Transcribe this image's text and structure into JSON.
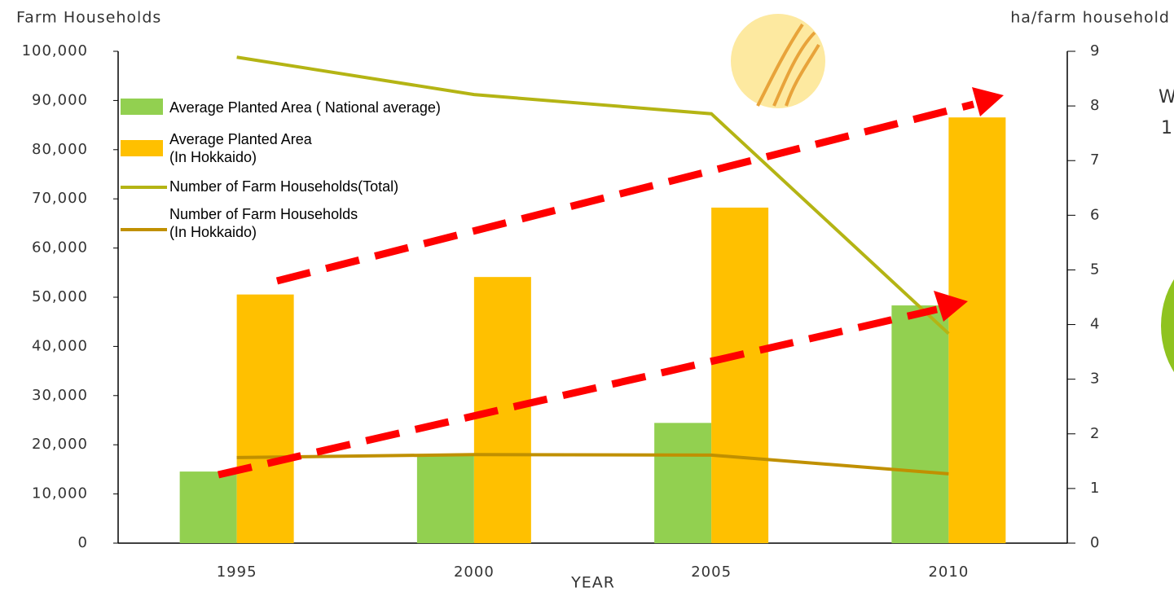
{
  "chart_data": {
    "type": "combo",
    "y_label": "Farm Households",
    "y2_label": "ha/farm household",
    "x_label": "YEAR",
    "categories": [
      "1995",
      "2000",
      "2005",
      "2010"
    ],
    "ylim": [
      0,
      100000
    ],
    "yticks": [
      0,
      {
        "value": 10000,
        "label": "10,000"
      },
      {
        "value": 20000,
        "label": "20,000"
      },
      {
        "value": 30000,
        "label": "30,000"
      },
      {
        "value": 40000,
        "label": "40,000"
      },
      {
        "value": 50000,
        "label": "50,000"
      },
      {
        "value": 60000,
        "label": "60,000"
      },
      {
        "value": 70000,
        "label": "70,000"
      },
      {
        "value": 80000,
        "label": "80,000"
      },
      {
        "value": 90000,
        "label": "90,000"
      },
      {
        "value": 100000,
        "label": "100,000"
      }
    ],
    "y2lim": [
      0,
      9
    ],
    "y2ticks": [
      0,
      1,
      2,
      3,
      4,
      5,
      6,
      7,
      8,
      9
    ],
    "series": [
      {
        "name": "Average Planted Area ( National average)",
        "type": "bar",
        "axis": "y2",
        "color": "#92d050",
        "values": [
          1.31,
          1.6,
          2.2,
          4.35
        ]
      },
      {
        "name": "Average Planted Area\n (In Hokkaido)",
        "type": "bar",
        "axis": "y2",
        "color": "#ffc000",
        "values": [
          4.55,
          4.87,
          6.14,
          7.79
        ]
      },
      {
        "name": "Number of Farm Households(Total)",
        "type": "line",
        "color": "#b4b414",
        "values": [
          98800,
          91200,
          87300,
          42600
        ]
      },
      {
        "name": "Number of Farm Households\n(In Hokkaido)",
        "type": "line",
        "color": "#c09000",
        "values": [
          17400,
          18000,
          17900,
          14100
        ]
      }
    ],
    "side_texts": [
      "W",
      "1"
    ]
  }
}
